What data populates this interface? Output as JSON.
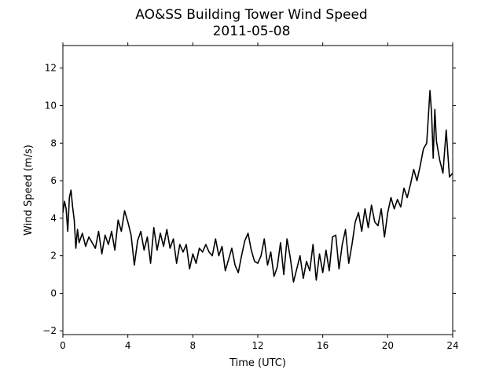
{
  "chart_data": {
    "type": "line",
    "title": "AO&SS Building Tower Wind Speed",
    "subtitle": "2011-05-08",
    "xlabel": "Time (UTC)",
    "ylabel": "Wind Speed (m/s)",
    "xlim": [
      0,
      24
    ],
    "ylim": [
      -2.2,
      13.2
    ],
    "xticks": [
      0,
      4,
      8,
      12,
      16,
      20,
      24
    ],
    "yticks": [
      -2,
      0,
      2,
      4,
      6,
      8,
      10,
      12
    ],
    "grid": false,
    "line_color": "#000000",
    "series": [
      {
        "name": "",
        "x": [
          0,
          0.1,
          0.2,
          0.3,
          0.4,
          0.5,
          0.6,
          0.7,
          0.8,
          0.9,
          1.0,
          1.2,
          1.4,
          1.6,
          1.8,
          2.0,
          2.2,
          2.4,
          2.6,
          2.8,
          3.0,
          3.2,
          3.4,
          3.6,
          3.8,
          4.0,
          4.2,
          4.4,
          4.6,
          4.8,
          5.0,
          5.2,
          5.4,
          5.6,
          5.8,
          6.0,
          6.2,
          6.4,
          6.6,
          6.8,
          7.0,
          7.2,
          7.4,
          7.6,
          7.8,
          8.0,
          8.2,
          8.4,
          8.6,
          8.8,
          9.0,
          9.2,
          9.4,
          9.6,
          9.8,
          10.0,
          10.2,
          10.4,
          10.6,
          10.8,
          11.0,
          11.2,
          11.4,
          11.6,
          11.8,
          12.0,
          12.2,
          12.4,
          12.6,
          12.8,
          13.0,
          13.2,
          13.4,
          13.6,
          13.8,
          14.0,
          14.2,
          14.4,
          14.6,
          14.8,
          15.0,
          15.2,
          15.4,
          15.6,
          15.8,
          16.0,
          16.2,
          16.4,
          16.6,
          16.8,
          17.0,
          17.2,
          17.4,
          17.6,
          17.8,
          18.0,
          18.2,
          18.4,
          18.6,
          18.8,
          19.0,
          19.2,
          19.4,
          19.6,
          19.8,
          20.0,
          20.2,
          20.4,
          20.6,
          20.8,
          21.0,
          21.2,
          21.4,
          21.6,
          21.8,
          22.0,
          22.2,
          22.4,
          22.6,
          22.7,
          22.8,
          22.9,
          23.0,
          23.2,
          23.4,
          23.6,
          23.8,
          24.0
        ],
        "values": [
          4.3,
          4.9,
          4.5,
          3.3,
          5.1,
          5.5,
          4.6,
          3.9,
          2.4,
          3.4,
          2.7,
          3.2,
          2.5,
          3.0,
          2.7,
          2.4,
          3.3,
          2.1,
          3.1,
          2.6,
          3.3,
          2.3,
          3.9,
          3.3,
          4.4,
          3.8,
          3.1,
          1.5,
          2.8,
          3.3,
          2.3,
          3.0,
          1.6,
          3.5,
          2.3,
          3.2,
          2.5,
          3.4,
          2.4,
          2.9,
          1.6,
          2.6,
          2.2,
          2.6,
          1.3,
          2.1,
          1.6,
          2.4,
          2.2,
          2.6,
          2.2,
          2.0,
          2.9,
          2.0,
          2.5,
          1.2,
          1.8,
          2.4,
          1.5,
          1.1,
          2.0,
          2.8,
          3.2,
          2.3,
          1.7,
          1.6,
          2.0,
          2.9,
          1.5,
          2.2,
          0.9,
          1.4,
          2.7,
          1.0,
          2.9,
          1.9,
          0.6,
          1.3,
          2.0,
          0.8,
          1.7,
          1.2,
          2.6,
          0.7,
          2.1,
          1.1,
          2.3,
          1.2,
          3.0,
          3.1,
          1.3,
          2.6,
          3.4,
          1.6,
          2.6,
          3.8,
          4.3,
          3.3,
          4.5,
          3.5,
          4.7,
          3.8,
          3.6,
          4.5,
          3.0,
          4.3,
          5.1,
          4.5,
          5.0,
          4.6,
          5.6,
          5.1,
          5.8,
          6.6,
          6.0,
          6.8,
          7.7,
          8.0,
          10.8,
          9.6,
          7.2,
          9.8,
          8.1,
          7.1,
          6.4,
          8.7,
          6.2,
          6.4
        ]
      }
    ]
  }
}
